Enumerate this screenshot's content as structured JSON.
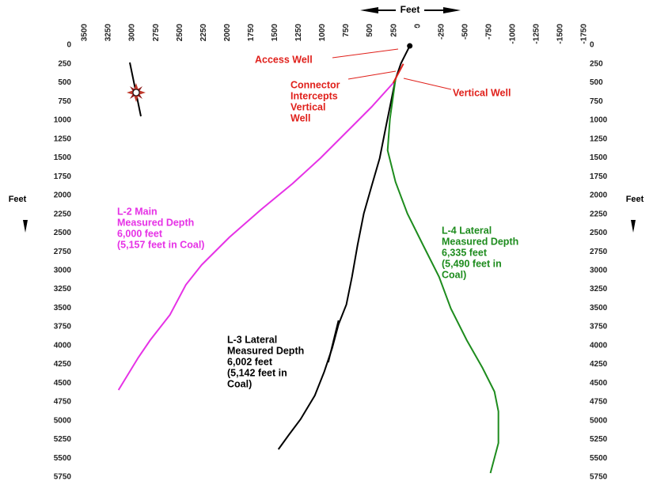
{
  "chart_data": {
    "type": "line",
    "x_label": "Feet",
    "y_label": "Feet",
    "xlim": [
      3500,
      -1750
    ],
    "ylim": [
      0,
      5750
    ],
    "xticks": [
      3500,
      3250,
      3000,
      2750,
      2500,
      2250,
      2000,
      1750,
      1500,
      1250,
      1000,
      750,
      500,
      250,
      0,
      -250,
      -500,
      -750,
      -1000,
      -1250,
      -1500,
      -1750
    ],
    "yticks": [
      0,
      250,
      500,
      750,
      1000,
      1250,
      1500,
      1750,
      2000,
      2250,
      2500,
      2750,
      3000,
      3250,
      3500,
      3750,
      4000,
      4250,
      4500,
      4750,
      5000,
      5250,
      5500,
      5750
    ],
    "series": [
      {
        "name": "L-2 Main",
        "color": "#e632e6",
        "x": [
          258,
          483,
          649,
          815,
          1023,
          1314,
          1647,
          1980,
          2271,
          2437,
          2604,
          2812,
          2937,
          3145
        ],
        "values": [
          505,
          821,
          1032,
          1243,
          1506,
          1843,
          2190,
          2559,
          2927,
          3191,
          3591,
          3928,
          4160,
          4592
        ]
      },
      {
        "name": "L-3 Lateral",
        "color": "#000000",
        "x": [
          83,
          175,
          233,
          283,
          333,
          399,
          483,
          566,
          632,
          690,
          749,
          832,
          898,
          982,
          1081,
          1231,
          1356,
          1464
        ],
        "values": [
          11,
          242,
          453,
          769,
          1085,
          1506,
          1874,
          2243,
          2664,
          3085,
          3454,
          3717,
          4033,
          4349,
          4665,
          4981,
          5192,
          5381
        ]
      },
      {
        "name": "L-3 Branch",
        "color": "#000000",
        "x": [
          832,
          940
        ],
        "values": [
          3665,
          4223
        ]
      },
      {
        "name": "L-4 Lateral",
        "color": "#1e8c1e",
        "x": [
          233,
          291,
          316,
          233,
          108,
          -58,
          -225,
          -349,
          -516,
          -682,
          -807,
          -849,
          -849,
          -765
        ],
        "values": [
          453,
          979,
          1401,
          1822,
          2243,
          2664,
          3085,
          3507,
          3928,
          4297,
          4613,
          4876,
          5297,
          5697
        ]
      },
      {
        "name": "Connector",
        "color": "#e0201b",
        "x": [
          150,
          258
        ],
        "values": [
          250,
          505
        ]
      }
    ],
    "annotations": [
      {
        "lines": [
          "Access Well"
        ],
        "color": "#e0201b"
      },
      {
        "lines": [
          "Connector",
          "Intercepts",
          "Vertical",
          "Well"
        ],
        "color": "#e0201b"
      },
      {
        "lines": [
          "Vertical Well"
        ],
        "color": "#e0201b"
      },
      {
        "lines": [
          "L-2 Main",
          "Measured Depth",
          "6,000 feet",
          "(5,157 feet in Coal)"
        ],
        "color": "#e632e6"
      },
      {
        "lines": [
          "L-4 Lateral",
          "Measured Depth",
          "6,335 feet",
          "(5,490 feet in",
          "Coal)"
        ],
        "color": "#1e8c1e"
      },
      {
        "lines": [
          "L-3 Lateral",
          "Measured Depth",
          "6,002 feet",
          "(5,142 feet in",
          "Coal)"
        ],
        "color": "#000000"
      }
    ]
  }
}
